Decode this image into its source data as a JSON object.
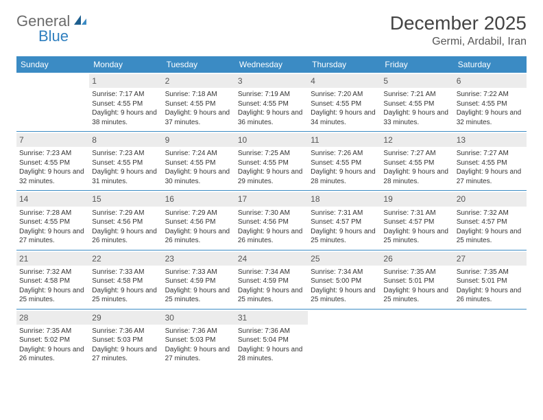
{
  "logo": {
    "word1": "General",
    "word2": "Blue"
  },
  "title": "December 2025",
  "location": "Germi, Ardabil, Iran",
  "colors": {
    "header_bg": "#3b8bc4",
    "header_text": "#ffffff",
    "daynum_bg": "#ececec",
    "daynum_text": "#555555",
    "border": "#3b8bc4",
    "body_text": "#333333"
  },
  "font": {
    "family": "Arial",
    "body_size": 10,
    "header_size": 12,
    "title_size": 28,
    "location_size": 16
  },
  "day_names": [
    "Sunday",
    "Monday",
    "Tuesday",
    "Wednesday",
    "Thursday",
    "Friday",
    "Saturday"
  ],
  "weeks": [
    [
      {
        "day": null
      },
      {
        "day": 1,
        "sunrise": "7:17 AM",
        "sunset": "4:55 PM",
        "daylight": "9 hours and 38 minutes."
      },
      {
        "day": 2,
        "sunrise": "7:18 AM",
        "sunset": "4:55 PM",
        "daylight": "9 hours and 37 minutes."
      },
      {
        "day": 3,
        "sunrise": "7:19 AM",
        "sunset": "4:55 PM",
        "daylight": "9 hours and 36 minutes."
      },
      {
        "day": 4,
        "sunrise": "7:20 AM",
        "sunset": "4:55 PM",
        "daylight": "9 hours and 34 minutes."
      },
      {
        "day": 5,
        "sunrise": "7:21 AM",
        "sunset": "4:55 PM",
        "daylight": "9 hours and 33 minutes."
      },
      {
        "day": 6,
        "sunrise": "7:22 AM",
        "sunset": "4:55 PM",
        "daylight": "9 hours and 32 minutes."
      }
    ],
    [
      {
        "day": 7,
        "sunrise": "7:23 AM",
        "sunset": "4:55 PM",
        "daylight": "9 hours and 32 minutes."
      },
      {
        "day": 8,
        "sunrise": "7:23 AM",
        "sunset": "4:55 PM",
        "daylight": "9 hours and 31 minutes."
      },
      {
        "day": 9,
        "sunrise": "7:24 AM",
        "sunset": "4:55 PM",
        "daylight": "9 hours and 30 minutes."
      },
      {
        "day": 10,
        "sunrise": "7:25 AM",
        "sunset": "4:55 PM",
        "daylight": "9 hours and 29 minutes."
      },
      {
        "day": 11,
        "sunrise": "7:26 AM",
        "sunset": "4:55 PM",
        "daylight": "9 hours and 28 minutes."
      },
      {
        "day": 12,
        "sunrise": "7:27 AM",
        "sunset": "4:55 PM",
        "daylight": "9 hours and 28 minutes."
      },
      {
        "day": 13,
        "sunrise": "7:27 AM",
        "sunset": "4:55 PM",
        "daylight": "9 hours and 27 minutes."
      }
    ],
    [
      {
        "day": 14,
        "sunrise": "7:28 AM",
        "sunset": "4:55 PM",
        "daylight": "9 hours and 27 minutes."
      },
      {
        "day": 15,
        "sunrise": "7:29 AM",
        "sunset": "4:56 PM",
        "daylight": "9 hours and 26 minutes."
      },
      {
        "day": 16,
        "sunrise": "7:29 AM",
        "sunset": "4:56 PM",
        "daylight": "9 hours and 26 minutes."
      },
      {
        "day": 17,
        "sunrise": "7:30 AM",
        "sunset": "4:56 PM",
        "daylight": "9 hours and 26 minutes."
      },
      {
        "day": 18,
        "sunrise": "7:31 AM",
        "sunset": "4:57 PM",
        "daylight": "9 hours and 25 minutes."
      },
      {
        "day": 19,
        "sunrise": "7:31 AM",
        "sunset": "4:57 PM",
        "daylight": "9 hours and 25 minutes."
      },
      {
        "day": 20,
        "sunrise": "7:32 AM",
        "sunset": "4:57 PM",
        "daylight": "9 hours and 25 minutes."
      }
    ],
    [
      {
        "day": 21,
        "sunrise": "7:32 AM",
        "sunset": "4:58 PM",
        "daylight": "9 hours and 25 minutes."
      },
      {
        "day": 22,
        "sunrise": "7:33 AM",
        "sunset": "4:58 PM",
        "daylight": "9 hours and 25 minutes."
      },
      {
        "day": 23,
        "sunrise": "7:33 AM",
        "sunset": "4:59 PM",
        "daylight": "9 hours and 25 minutes."
      },
      {
        "day": 24,
        "sunrise": "7:34 AM",
        "sunset": "4:59 PM",
        "daylight": "9 hours and 25 minutes."
      },
      {
        "day": 25,
        "sunrise": "7:34 AM",
        "sunset": "5:00 PM",
        "daylight": "9 hours and 25 minutes."
      },
      {
        "day": 26,
        "sunrise": "7:35 AM",
        "sunset": "5:01 PM",
        "daylight": "9 hours and 25 minutes."
      },
      {
        "day": 27,
        "sunrise": "7:35 AM",
        "sunset": "5:01 PM",
        "daylight": "9 hours and 26 minutes."
      }
    ],
    [
      {
        "day": 28,
        "sunrise": "7:35 AM",
        "sunset": "5:02 PM",
        "daylight": "9 hours and 26 minutes."
      },
      {
        "day": 29,
        "sunrise": "7:36 AM",
        "sunset": "5:03 PM",
        "daylight": "9 hours and 27 minutes."
      },
      {
        "day": 30,
        "sunrise": "7:36 AM",
        "sunset": "5:03 PM",
        "daylight": "9 hours and 27 minutes."
      },
      {
        "day": 31,
        "sunrise": "7:36 AM",
        "sunset": "5:04 PM",
        "daylight": "9 hours and 28 minutes."
      },
      {
        "day": null
      },
      {
        "day": null
      },
      {
        "day": null
      }
    ]
  ],
  "labels": {
    "sunrise": "Sunrise:",
    "sunset": "Sunset:",
    "daylight": "Daylight:"
  }
}
